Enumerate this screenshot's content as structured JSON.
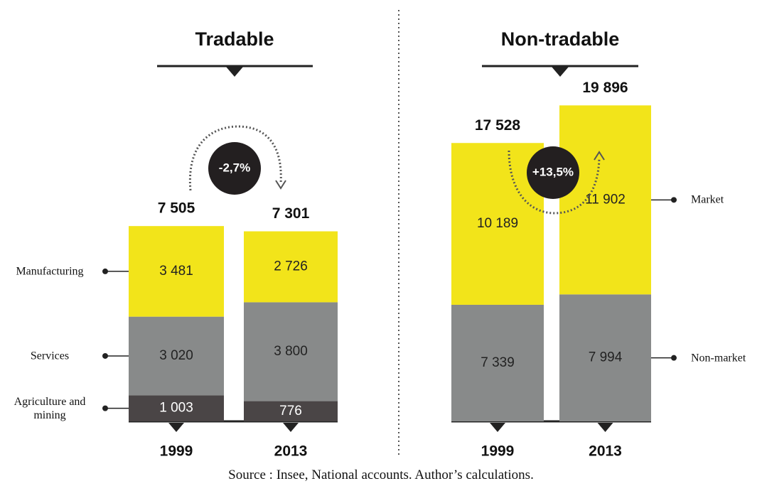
{
  "chart_data": [
    {
      "type": "bar",
      "stacked": true,
      "title": "Tradable",
      "categories": [
        "1999",
        "2013"
      ],
      "series": [
        {
          "name": "Agriculture and mining",
          "color": "#4a4546",
          "values": [
            1003,
            776
          ],
          "value_labels": [
            "1 003",
            "776"
          ]
        },
        {
          "name": "Services",
          "color": "#888a8a",
          "values": [
            3020,
            3800
          ],
          "value_labels": [
            "3 020",
            "3 800"
          ]
        },
        {
          "name": "Manufacturing",
          "color": "#f2e41a",
          "values": [
            3481,
            2726
          ],
          "value_labels": [
            "3 481",
            "2 726"
          ]
        }
      ],
      "totals": [
        7505,
        7301
      ],
      "total_labels": [
        "7 505",
        "7 301"
      ],
      "annotation": "-2,7%",
      "ylim": [
        0,
        8000
      ]
    },
    {
      "type": "bar",
      "stacked": true,
      "title": "Non-tradable",
      "categories": [
        "1999",
        "2013"
      ],
      "series": [
        {
          "name": "Non-market",
          "color": "#888a8a",
          "values": [
            7339,
            7994
          ],
          "value_labels": [
            "7 339",
            "7 994"
          ]
        },
        {
          "name": "Market",
          "color": "#f2e41a",
          "values": [
            10189,
            11902
          ],
          "value_labels": [
            "10 189",
            "11 902"
          ]
        }
      ],
      "totals": [
        17528,
        19896
      ],
      "total_labels": [
        "17 528",
        "19 896"
      ],
      "annotation": "+13,5%",
      "ylim": [
        0,
        20000
      ]
    }
  ],
  "source": "Source : Insee, National accounts. Author’s calculations."
}
